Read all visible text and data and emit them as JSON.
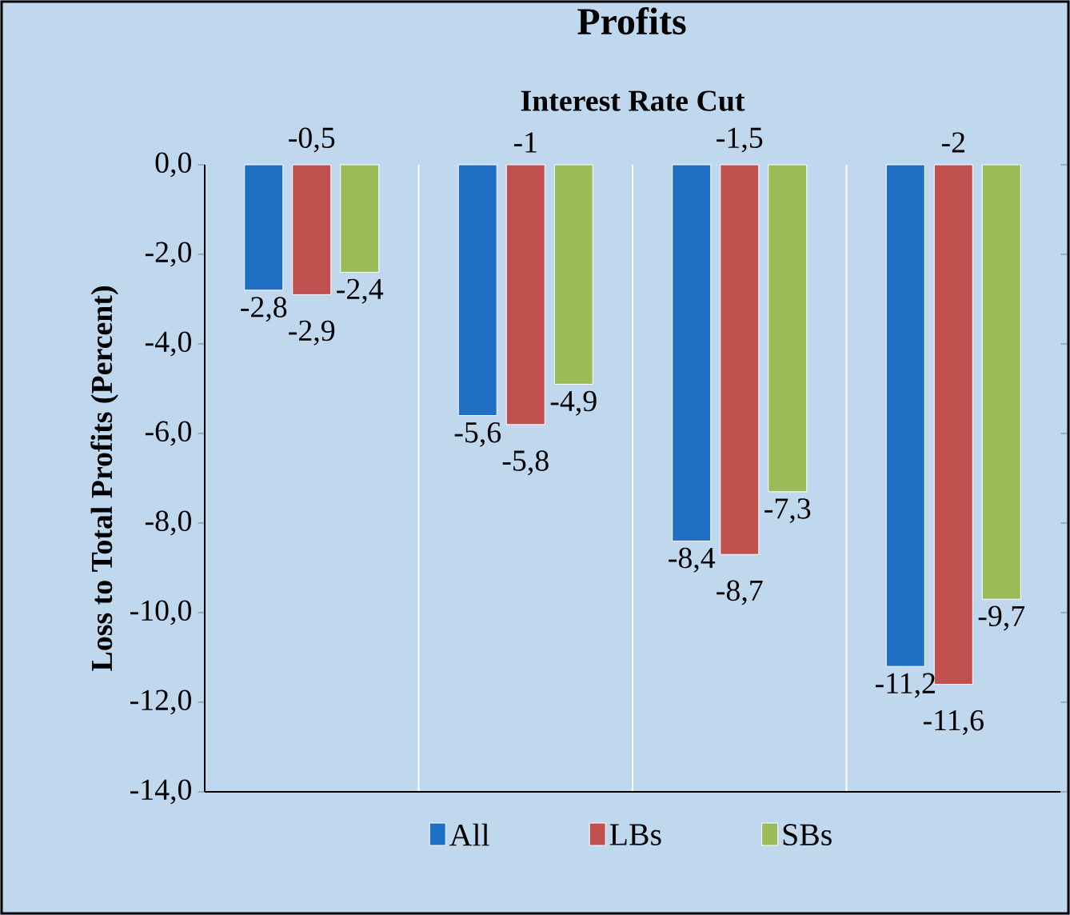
{
  "chart_data": {
    "type": "bar",
    "title": "Profits",
    "xlabel": "Interest Rate Cut",
    "ylabel": "Loss to Total Profits (Percent)",
    "categories": [
      "-0,5",
      "-1",
      "-1,5",
      "-2"
    ],
    "series": [
      {
        "name": "All",
        "color": "#1f6fc5",
        "values": [
          -2.8,
          -5.6,
          -8.4,
          -11.2
        ],
        "value_labels": [
          "-2,8",
          "-5,6",
          "-8,4",
          "-11,2"
        ]
      },
      {
        "name": "LBs",
        "color": "#c0504d",
        "values": [
          -2.9,
          -5.8,
          -8.7,
          -11.6
        ],
        "value_labels": [
          "-2,9",
          "-5,8",
          "-8,7",
          "-11,6"
        ]
      },
      {
        "name": "SBs",
        "color": "#9bbb59",
        "values": [
          -2.4,
          -4.9,
          -7.3,
          -9.7
        ],
        "value_labels": [
          "-2,4",
          "-4,9",
          "-7,3",
          "-9,7"
        ]
      }
    ],
    "ylim": [
      -14,
      0
    ],
    "yticks": [
      {
        "value": 0,
        "label": "0,0"
      },
      {
        "value": -2,
        "label": "-2,0"
      },
      {
        "value": -4,
        "label": "-4,0"
      },
      {
        "value": -6,
        "label": "-6,0"
      },
      {
        "value": -8,
        "label": "-8,0"
      },
      {
        "value": -10,
        "label": "-10,0"
      },
      {
        "value": -12,
        "label": "-12,0"
      },
      {
        "value": -14,
        "label": "-14,0"
      }
    ],
    "grid": "x",
    "legend": "bottom"
  }
}
